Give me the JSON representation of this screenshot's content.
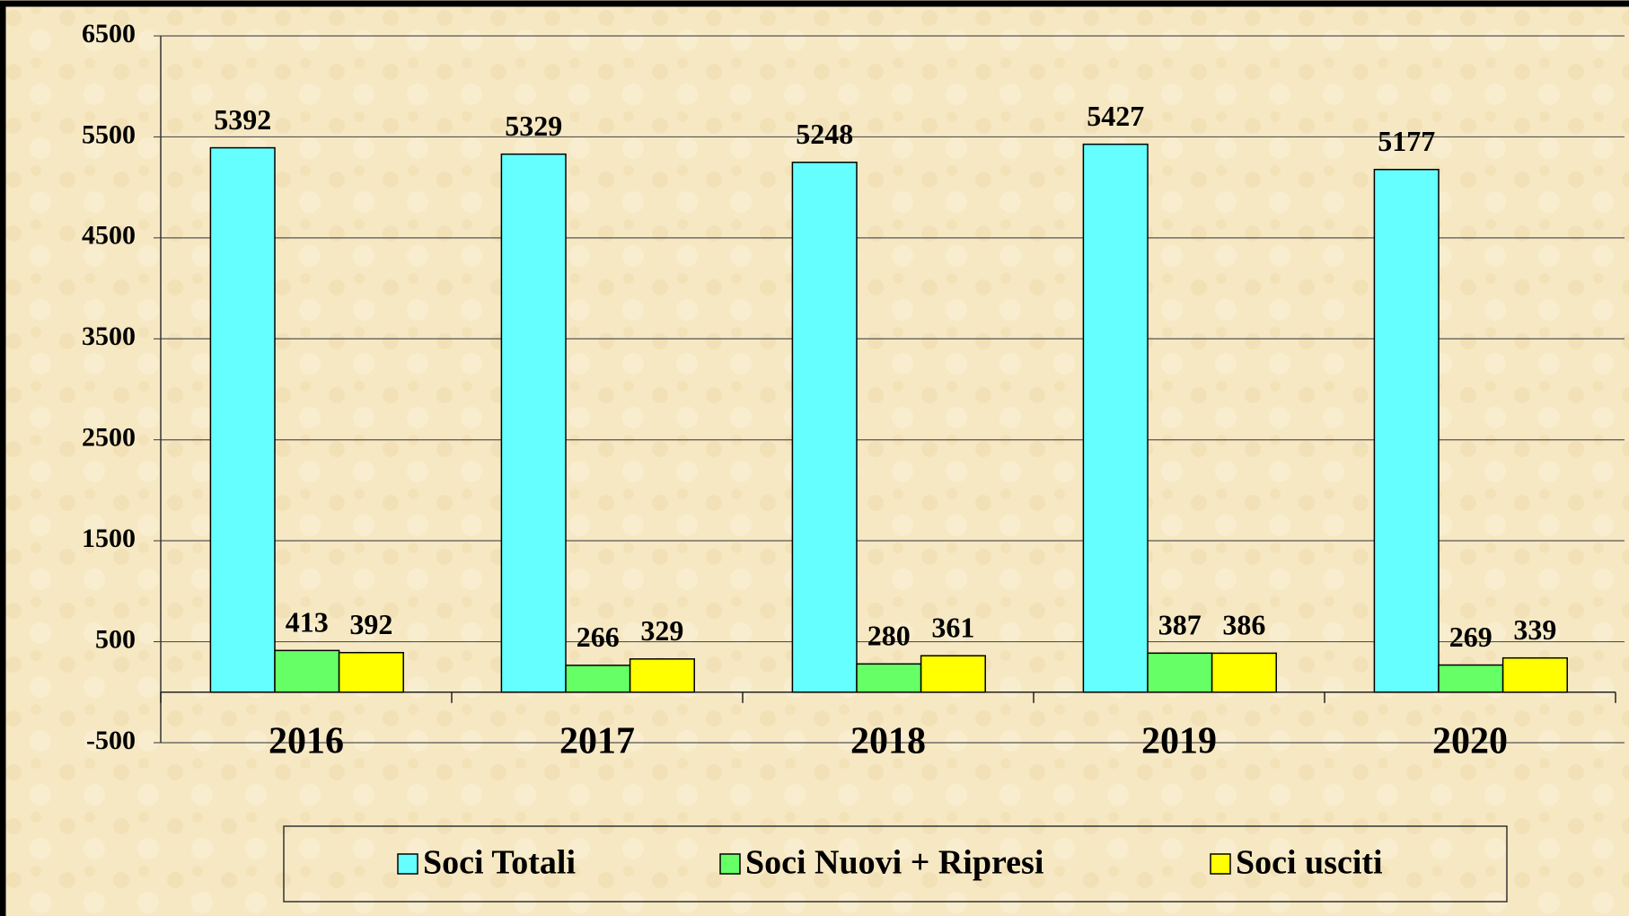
{
  "chart_data": {
    "type": "bar",
    "categories": [
      "2016",
      "2017",
      "2018",
      "2019",
      "2020"
    ],
    "series": [
      {
        "name": "Soci Totali",
        "color": "#66ffff",
        "values": [
          5392,
          5329,
          5248,
          5427,
          5177
        ]
      },
      {
        "name": "Soci Nuovi + Ripresi",
        "color": "#66ff66",
        "values": [
          413,
          266,
          280,
          387,
          269
        ]
      },
      {
        "name": "Soci usciti",
        "color": "#ffff00",
        "values": [
          392,
          329,
          361,
          386,
          339
        ]
      }
    ],
    "ylim": [
      -500,
      6500
    ],
    "yticks": [
      -500,
      500,
      1500,
      2500,
      3500,
      4500,
      5500,
      6500
    ],
    "grid": true,
    "legend": "bottom"
  }
}
